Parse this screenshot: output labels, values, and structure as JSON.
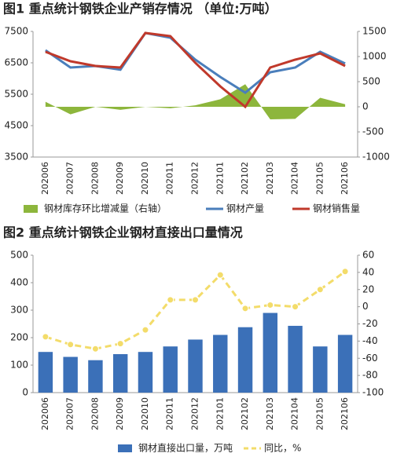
{
  "chart_data": [
    {
      "type": "line",
      "title": "图1 重点统计钢铁企业产销存情况 （单位:万吨）",
      "categories": [
        "202006",
        "202007",
        "202008",
        "202009",
        "202010",
        "202011",
        "202012",
        "202101",
        "202102",
        "202103",
        "202104",
        "202105",
        "202106"
      ],
      "ylim": [
        3500,
        7500
      ],
      "yticks": [
        3500,
        4500,
        5500,
        6500,
        7500
      ],
      "y2lim": [
        -1000,
        1500
      ],
      "y2ticks": [
        -1000,
        -500,
        0,
        500,
        1000,
        1500
      ],
      "grid": false,
      "series": [
        {
          "name": "钢材库存环比增减量（右轴）",
          "style": "area",
          "axis": "y2",
          "color": "#8db63c",
          "values": [
            100,
            -150,
            0,
            -60,
            0,
            -30,
            30,
            150,
            450,
            -250,
            -240,
            180,
            50
          ]
        },
        {
          "name": "钢材产量",
          "style": "line",
          "color": "#4a7ebb",
          "values": [
            6900,
            6350,
            6400,
            6280,
            7450,
            7300,
            6600,
            6050,
            5550,
            6200,
            6350,
            6850,
            6480
          ]
        },
        {
          "name": "钢材销售量",
          "style": "line",
          "color": "#c0392b",
          "values": [
            6850,
            6550,
            6400,
            6350,
            7450,
            7350,
            6500,
            5750,
            5100,
            6350,
            6600,
            6800,
            6400
          ]
        }
      ]
    },
    {
      "type": "bar",
      "title": "图2 重点统计钢铁企业钢材直接出口量情况",
      "categories": [
        "202006",
        "202007",
        "202008",
        "202009",
        "202010",
        "202011",
        "202012",
        "202101",
        "202102",
        "202103",
        "202104",
        "202105",
        "202106"
      ],
      "ylim": [
        0,
        500
      ],
      "yticks": [
        0,
        100,
        200,
        300,
        400,
        500
      ],
      "y2lim": [
        -100,
        60
      ],
      "y2ticks": [
        -100,
        -80,
        -60,
        -40,
        -20,
        0,
        20,
        40,
        60
      ],
      "grid": false,
      "series": [
        {
          "name": "钢材直接出口量，万吨",
          "style": "bar",
          "color": "#3b70b8",
          "values": [
            148,
            130,
            118,
            140,
            148,
            168,
            193,
            210,
            238,
            290,
            243,
            168,
            210
          ]
        },
        {
          "name": "同比，%",
          "style": "dashed-line",
          "axis": "y2",
          "color": "#f3dc6a",
          "values": [
            -35,
            -44,
            -49,
            -43,
            -27,
            8,
            8,
            37,
            -2,
            2,
            0,
            20,
            41
          ]
        }
      ]
    }
  ]
}
